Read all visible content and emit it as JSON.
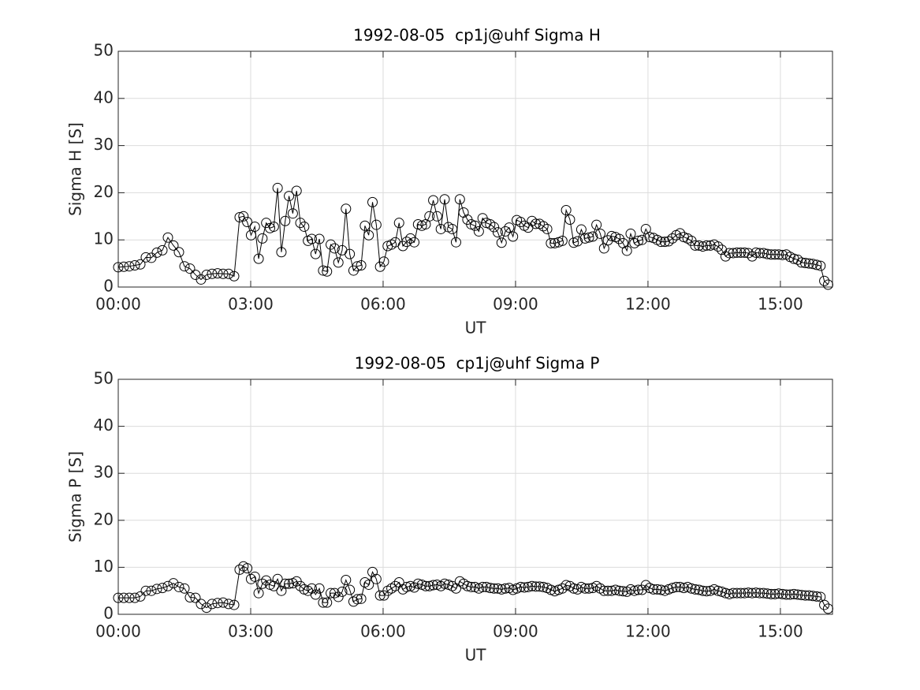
{
  "chart_data": [
    {
      "type": "line",
      "title": "1992-08-05  cp1j@uhf Sigma H",
      "x_label": "UT",
      "y_label": "Sigma H [S]",
      "xlim": [
        0,
        16.18
      ],
      "ylim": [
        0,
        50
      ],
      "grid": true,
      "marker": "circle",
      "xticks": [
        {
          "value": 0,
          "label": "00:00"
        },
        {
          "value": 3,
          "label": "03:00"
        },
        {
          "value": 6,
          "label": "06:00"
        },
        {
          "value": 9,
          "label": "09:00"
        },
        {
          "value": 12,
          "label": "12:00"
        },
        {
          "value": 15,
          "label": "15:00"
        }
      ],
      "yticks": [
        0,
        10,
        20,
        30,
        40,
        50
      ],
      "x": [
        0,
        0.125,
        0.25,
        0.375,
        0.5,
        0.625,
        0.75,
        0.875,
        1,
        1.125,
        1.25,
        1.375,
        1.5,
        1.625,
        1.75,
        1.875,
        2,
        2.125,
        2.25,
        2.375,
        2.5,
        2.625,
        2.75,
        2.836,
        2.922,
        3.008,
        3.094,
        3.18,
        3.266,
        3.352,
        3.438,
        3.524,
        3.61,
        3.696,
        3.782,
        3.868,
        3.954,
        4.04,
        4.126,
        4.212,
        4.298,
        4.384,
        4.47,
        4.556,
        4.642,
        4.728,
        4.814,
        4.9,
        4.986,
        5.072,
        5.158,
        5.244,
        5.33,
        5.416,
        5.502,
        5.588,
        5.674,
        5.76,
        5.846,
        5.932,
        6.018,
        6.104,
        6.19,
        6.276,
        6.362,
        6.448,
        6.534,
        6.62,
        6.706,
        6.792,
        6.878,
        6.964,
        7.05,
        7.136,
        7.222,
        7.308,
        7.394,
        7.48,
        7.566,
        7.652,
        7.738,
        7.824,
        7.91,
        7.996,
        8.082,
        8.168,
        8.254,
        8.34,
        8.426,
        8.512,
        8.598,
        8.684,
        8.77,
        8.856,
        8.942,
        9.028,
        9.114,
        9.2,
        9.286,
        9.372,
        9.458,
        9.544,
        9.63,
        9.716,
        9.802,
        9.888,
        9.974,
        10.06,
        10.146,
        10.232,
        10.318,
        10.404,
        10.49,
        10.576,
        10.662,
        10.748,
        10.834,
        10.92,
        11.006,
        11.092,
        11.178,
        11.264,
        11.35,
        11.436,
        11.522,
        11.608,
        11.694,
        11.78,
        11.866,
        11.952,
        12.038,
        12.124,
        12.21,
        12.296,
        12.382,
        12.468,
        12.554,
        12.64,
        12.726,
        12.812,
        12.898,
        12.984,
        13.07,
        13.156,
        13.242,
        13.328,
        13.414,
        13.5,
        13.586,
        13.672,
        13.758,
        13.844,
        13.93,
        14.016,
        14.102,
        14.188,
        14.274,
        14.36,
        14.446,
        14.532,
        14.618,
        14.704,
        14.79,
        14.876,
        14.962,
        15.048,
        15.134,
        15.22,
        15.306,
        15.392,
        15.478,
        15.564,
        15.65,
        15.736,
        15.822,
        15.908,
        15.994,
        16.08
      ],
      "series": [
        {
          "color": "#000000",
          "values": [
            4.2,
            4.3,
            4.4,
            4.6,
            4.8,
            6.3,
            6.2,
            7.3,
            7.8,
            10.5,
            8.8,
            7.4,
            4.4,
            3.9,
            2.6,
            1.6,
            2.6,
            2.8,
            2.9,
            2.8,
            2.8,
            2.3,
            14.8,
            15.0,
            13.8,
            11.0,
            12.8,
            6.0,
            10.3,
            13.6,
            12.5,
            12.8,
            21.0,
            7.4,
            14.0,
            19.3,
            15.6,
            20.4,
            13.6,
            12.8,
            9.8,
            10.2,
            7.0,
            10.2,
            3.5,
            3.3,
            9.0,
            8.2,
            5.2,
            7.8,
            16.6,
            7.0,
            3.5,
            4.4,
            4.6,
            13.0,
            11.0,
            18.0,
            13.2,
            4.3,
            5.4,
            8.7,
            9.0,
            9.5,
            13.6,
            8.7,
            9.6,
            10.3,
            9.5,
            13.3,
            13.0,
            13.3,
            15.0,
            18.4,
            15.0,
            12.3,
            18.6,
            12.7,
            12.3,
            9.5,
            18.6,
            15.8,
            14.3,
            13.3,
            13.0,
            11.8,
            14.6,
            13.6,
            13.3,
            12.7,
            11.6,
            9.4,
            11.8,
            12.6,
            10.7,
            14.2,
            13.8,
            13.0,
            12.6,
            14.0,
            13.4,
            13.4,
            12.9,
            12.3,
            9.3,
            9.3,
            9.5,
            9.8,
            16.3,
            14.3,
            9.4,
            9.7,
            12.2,
            10.3,
            10.5,
            10.7,
            13.2,
            11.3,
            8.2,
            9.9,
            10.8,
            10.6,
            10.2,
            9.3,
            7.7,
            11.3,
            9.3,
            9.8,
            10.0,
            12.3,
            10.6,
            10.4,
            10.0,
            9.6,
            9.6,
            9.7,
            10.3,
            11.0,
            11.4,
            10.6,
            10.3,
            9.8,
            8.8,
            8.8,
            8.6,
            8.8,
            8.8,
            9.0,
            8.6,
            7.9,
            6.5,
            7.2,
            7.2,
            7.3,
            7.3,
            7.3,
            7.2,
            6.5,
            7.3,
            7.2,
            7.2,
            7.0,
            6.9,
            6.9,
            6.9,
            6.8,
            6.9,
            6.4,
            6.0,
            5.8,
            5.2,
            5.1,
            5.0,
            4.9,
            4.7,
            4.5,
            1.3,
            0.5
          ]
        }
      ]
    },
    {
      "type": "line",
      "title": "1992-08-05  cp1j@uhf Sigma P",
      "x_label": "UT",
      "y_label": "Sigma P [S]",
      "xlim": [
        0,
        16.18
      ],
      "ylim": [
        0,
        50
      ],
      "grid": true,
      "marker": "circle",
      "xticks": [
        {
          "value": 0,
          "label": "00:00"
        },
        {
          "value": 3,
          "label": "03:00"
        },
        {
          "value": 6,
          "label": "06:00"
        },
        {
          "value": 9,
          "label": "09:00"
        },
        {
          "value": 12,
          "label": "12:00"
        },
        {
          "value": 15,
          "label": "15:00"
        }
      ],
      "yticks": [
        0,
        10,
        20,
        30,
        40,
        50
      ],
      "x": [
        0,
        0.125,
        0.25,
        0.375,
        0.5,
        0.625,
        0.75,
        0.875,
        1,
        1.125,
        1.25,
        1.375,
        1.5,
        1.625,
        1.75,
        1.875,
        2,
        2.125,
        2.25,
        2.375,
        2.5,
        2.625,
        2.75,
        2.836,
        2.922,
        3.008,
        3.094,
        3.18,
        3.266,
        3.352,
        3.438,
        3.524,
        3.61,
        3.696,
        3.782,
        3.868,
        3.954,
        4.04,
        4.126,
        4.212,
        4.298,
        4.384,
        4.47,
        4.556,
        4.642,
        4.728,
        4.814,
        4.9,
        4.986,
        5.072,
        5.158,
        5.244,
        5.33,
        5.416,
        5.502,
        5.588,
        5.674,
        5.76,
        5.846,
        5.932,
        6.018,
        6.104,
        6.19,
        6.276,
        6.362,
        6.448,
        6.534,
        6.62,
        6.706,
        6.792,
        6.878,
        6.964,
        7.05,
        7.136,
        7.222,
        7.308,
        7.394,
        7.48,
        7.566,
        7.652,
        7.738,
        7.824,
        7.91,
        7.996,
        8.082,
        8.168,
        8.254,
        8.34,
        8.426,
        8.512,
        8.598,
        8.684,
        8.77,
        8.856,
        8.942,
        9.028,
        9.114,
        9.2,
        9.286,
        9.372,
        9.458,
        9.544,
        9.63,
        9.716,
        9.802,
        9.888,
        9.974,
        10.06,
        10.146,
        10.232,
        10.318,
        10.404,
        10.49,
        10.576,
        10.662,
        10.748,
        10.834,
        10.92,
        11.006,
        11.092,
        11.178,
        11.264,
        11.35,
        11.436,
        11.522,
        11.608,
        11.694,
        11.78,
        11.866,
        11.952,
        12.038,
        12.124,
        12.21,
        12.296,
        12.382,
        12.468,
        12.554,
        12.64,
        12.726,
        12.812,
        12.898,
        12.984,
        13.07,
        13.156,
        13.242,
        13.328,
        13.414,
        13.5,
        13.586,
        13.672,
        13.758,
        13.844,
        13.93,
        14.016,
        14.102,
        14.188,
        14.274,
        14.36,
        14.446,
        14.532,
        14.618,
        14.704,
        14.79,
        14.876,
        14.962,
        15.048,
        15.134,
        15.22,
        15.306,
        15.392,
        15.478,
        15.564,
        15.65,
        15.736,
        15.822,
        15.908,
        15.994,
        16.08
      ],
      "series": [
        {
          "color": "#000000",
          "values": [
            3.5,
            3.5,
            3.5,
            3.5,
            3.8,
            5.0,
            5.0,
            5.4,
            5.6,
            6.0,
            6.6,
            5.8,
            5.5,
            3.6,
            3.5,
            2.2,
            1.4,
            2.2,
            2.4,
            2.5,
            2.2,
            2.0,
            9.5,
            10.2,
            9.8,
            7.5,
            8.0,
            4.5,
            6.5,
            7.2,
            6.3,
            6.0,
            7.5,
            5.0,
            6.5,
            6.5,
            6.6,
            7.0,
            6.0,
            5.3,
            5.0,
            5.5,
            4.2,
            5.5,
            2.5,
            2.5,
            4.5,
            4.5,
            3.7,
            4.8,
            7.3,
            5.2,
            2.7,
            3.2,
            3.3,
            6.8,
            6.3,
            9.0,
            7.5,
            4.0,
            4.0,
            5.0,
            5.5,
            6.0,
            6.8,
            5.3,
            5.8,
            6.0,
            5.7,
            6.5,
            6.3,
            6.0,
            6.0,
            6.2,
            6.3,
            6.0,
            6.5,
            6.3,
            6.0,
            5.5,
            7.0,
            6.5,
            6.0,
            5.8,
            5.8,
            5.5,
            5.8,
            5.8,
            5.6,
            5.5,
            5.5,
            5.3,
            5.5,
            5.6,
            5.2,
            5.5,
            5.8,
            5.7,
            5.8,
            6.0,
            5.9,
            5.9,
            5.8,
            5.6,
            5.2,
            4.9,
            5.2,
            5.5,
            6.2,
            6.0,
            5.5,
            5.3,
            5.8,
            5.5,
            5.5,
            5.6,
            6.0,
            5.5,
            5.0,
            5.0,
            5.0,
            5.2,
            5.0,
            4.9,
            4.8,
            5.3,
            5.0,
            5.2,
            5.2,
            6.2,
            5.6,
            5.3,
            5.3,
            5.2,
            5.0,
            5.3,
            5.6,
            5.8,
            5.8,
            5.6,
            5.8,
            5.5,
            5.3,
            5.2,
            5.0,
            4.9,
            5.0,
            5.3,
            5.0,
            4.8,
            4.5,
            4.3,
            4.5,
            4.5,
            4.5,
            4.5,
            4.6,
            4.5,
            4.6,
            4.5,
            4.5,
            4.4,
            4.3,
            4.3,
            4.4,
            4.3,
            4.2,
            4.2,
            4.3,
            4.2,
            4.1,
            4.0,
            4.0,
            3.9,
            3.8,
            3.7,
            2.0,
            1.2
          ]
        }
      ]
    }
  ]
}
